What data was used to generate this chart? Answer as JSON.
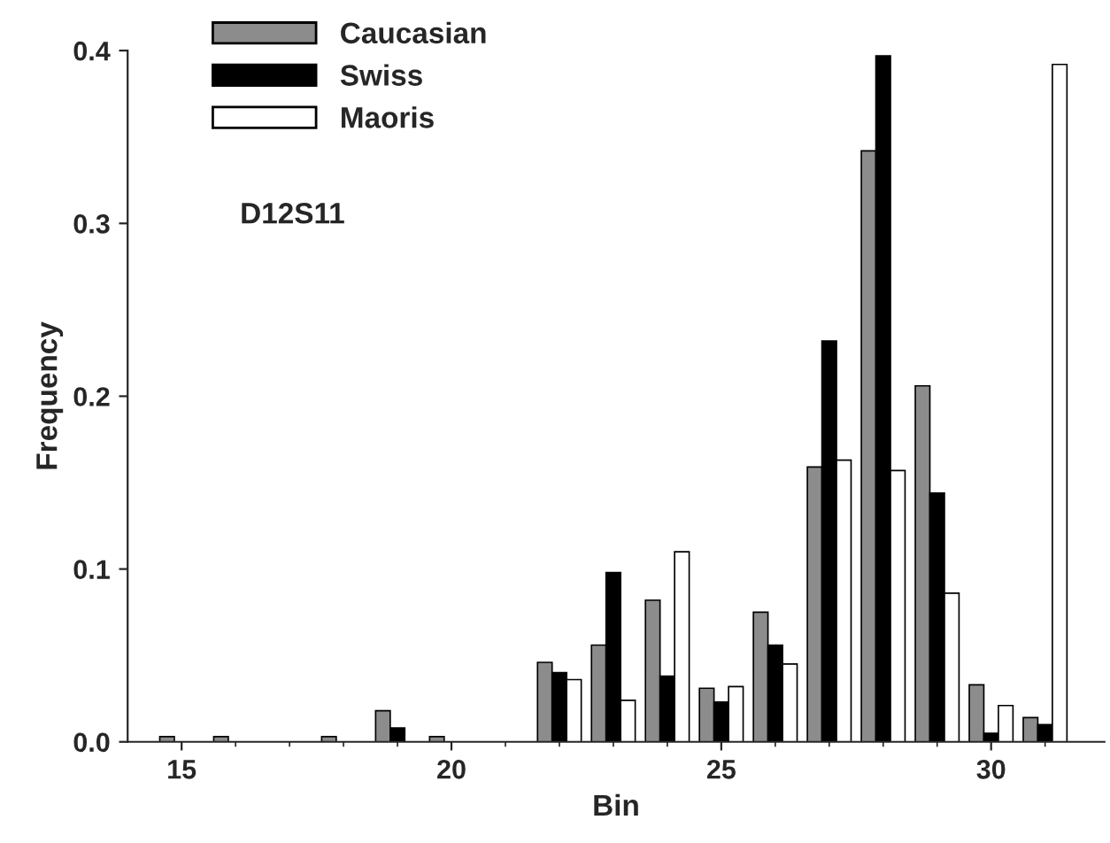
{
  "chart_data": {
    "type": "bar",
    "xlabel": "Bin",
    "ylabel": "Frequency",
    "x": [
      15,
      16,
      17,
      18,
      19,
      20,
      21,
      22,
      23,
      24,
      25,
      26,
      27,
      28,
      29,
      30,
      31
    ],
    "series": [
      {
        "name": "Caucasian",
        "color": "#8c8c8c",
        "values": [
          0.003,
          0.003,
          null,
          0.003,
          0.018,
          0.003,
          null,
          0.046,
          0.056,
          0.082,
          0.031,
          0.075,
          0.159,
          0.342,
          0.206,
          0.033,
          0.014
        ]
      },
      {
        "name": "Swiss",
        "color": "#000000",
        "values": [
          null,
          null,
          null,
          null,
          0.008,
          null,
          null,
          0.04,
          0.098,
          0.038,
          0.023,
          0.056,
          0.232,
          0.397,
          0.144,
          0.005,
          0.01
        ]
      },
      {
        "name": "Maoris",
        "color": "#ffffff",
        "values": [
          null,
          null,
          null,
          null,
          null,
          null,
          null,
          0.036,
          0.024,
          0.11,
          0.032,
          0.045,
          0.163,
          0.157,
          0.086,
          0.021,
          0.392
        ]
      }
    ],
    "xlim": [
      14,
      32.1
    ],
    "xticks": [
      15,
      20,
      25,
      30
    ],
    "ylim": [
      0,
      0.4
    ],
    "yticks": [
      {
        "value": 0,
        "label": "0.0"
      },
      0.1,
      0.2,
      0.3,
      0.4
    ],
    "annotations": [
      "D12S11"
    ],
    "legend": "top left",
    "grid": false
  }
}
